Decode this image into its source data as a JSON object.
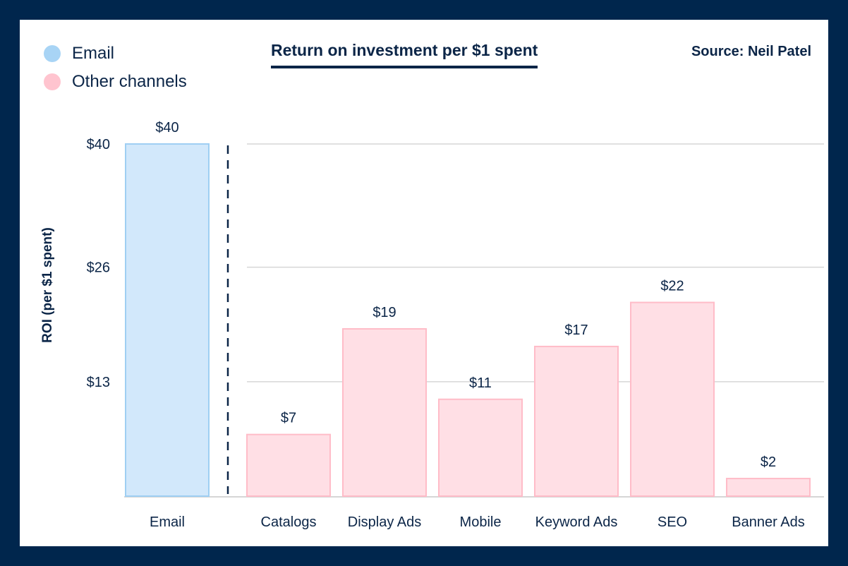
{
  "chart_data": {
    "type": "bar",
    "title": "Return on investment per $1 spent",
    "source": "Source: Neil Patel",
    "ylabel": "ROI  (per $1 spent)",
    "xlabel": "",
    "categories": [
      "Email",
      "Catalogs",
      "Display Ads",
      "Mobile",
      "Keyword Ads",
      "SEO",
      "Banner Ads"
    ],
    "values": [
      40,
      7,
      19,
      11,
      17,
      22,
      2
    ],
    "value_labels": [
      "$40",
      "$7",
      "$19",
      "$11",
      "$17",
      "$22",
      "$2"
    ],
    "groups": [
      "Email",
      "Other channels",
      "Other channels",
      "Other channels",
      "Other channels",
      "Other channels",
      "Other channels"
    ],
    "yticks": [
      13,
      26,
      40
    ],
    "ytick_labels": [
      "$13",
      "$26",
      "$40"
    ],
    "ylim": [
      0,
      40
    ],
    "grid": true,
    "legend": {
      "placement": "top-left",
      "entries": [
        {
          "label": "Email",
          "color": "#a8d4f5"
        },
        {
          "label": "Other channels",
          "color": "#ffc4cf"
        }
      ]
    },
    "colors": {
      "email_fill": "#d2e8fb",
      "email_stroke": "#9fcff3",
      "other_fill": "#ffdfe5",
      "other_stroke": "#ffbcc8",
      "text": "#0b2547",
      "frame": "#00264d"
    }
  }
}
